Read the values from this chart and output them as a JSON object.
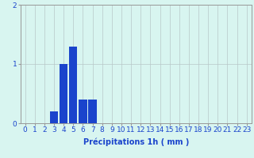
{
  "categories": [
    0,
    1,
    2,
    3,
    4,
    5,
    6,
    7,
    8,
    9,
    10,
    11,
    12,
    13,
    14,
    15,
    16,
    17,
    18,
    19,
    20,
    21,
    22,
    23
  ],
  "values": [
    0,
    0,
    0,
    0.2,
    1.0,
    1.3,
    0.4,
    0.4,
    0,
    0,
    0,
    0,
    0,
    0,
    0,
    0,
    0,
    0,
    0,
    0,
    0,
    0,
    0,
    0
  ],
  "bar_color": "#1a44cc",
  "background_color": "#d8f5f0",
  "grid_color": "#b8c8c8",
  "xlabel": "Précipitations 1h ( mm )",
  "ylim": [
    0,
    2
  ],
  "xlim": [
    -0.5,
    23.5
  ],
  "yticks": [
    0,
    1,
    2
  ],
  "xticks": [
    0,
    1,
    2,
    3,
    4,
    5,
    6,
    7,
    8,
    9,
    10,
    11,
    12,
    13,
    14,
    15,
    16,
    17,
    18,
    19,
    20,
    21,
    22,
    23
  ],
  "xlabel_fontsize": 7,
  "tick_fontsize": 6.5,
  "bar_width": 0.85,
  "tick_color": "#1a44cc",
  "label_color": "#1a44cc"
}
